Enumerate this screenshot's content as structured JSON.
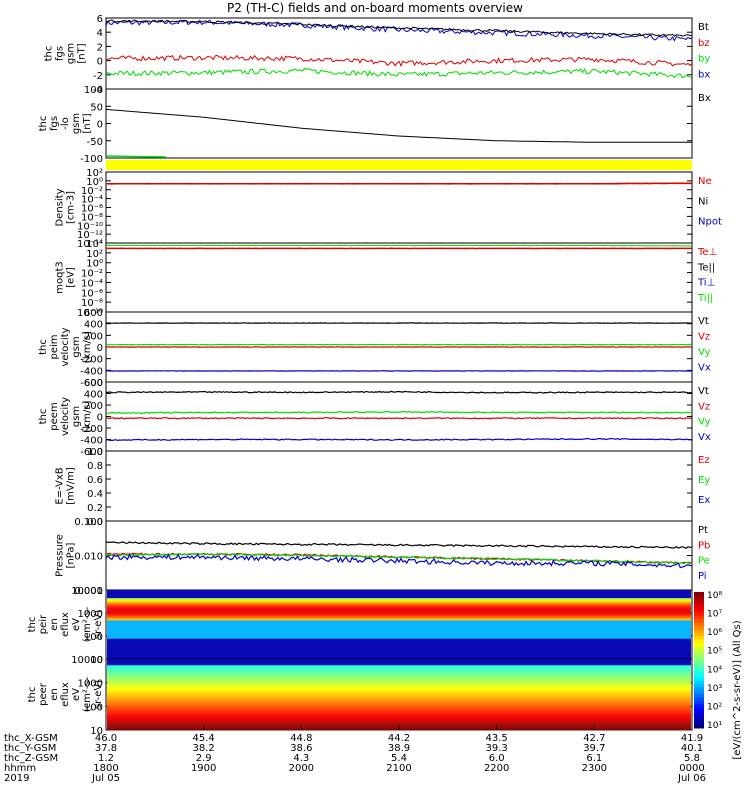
{
  "title": "P2 (TH-C) fields and on-board moments overview",
  "colors": {
    "black": "#000000",
    "red": "#e00000",
    "green": "#00dd00",
    "blue": "#0000d0",
    "yellow": "#ffff00"
  },
  "panels": [
    {
      "id": "fgs",
      "ylabel": [
        "thc",
        "fgs",
        "gsm",
        "[nT]"
      ],
      "ticks": [
        "6",
        "4",
        "2",
        "0",
        "-2",
        "-4"
      ],
      "legend": [
        {
          "t": "Bt",
          "c": "black"
        },
        {
          "t": "bz",
          "c": "red"
        },
        {
          "t": "by",
          "c": "green"
        },
        {
          "t": "bx",
          "c": "blue"
        }
      ]
    },
    {
      "id": "fgs_lo",
      "ylabel": [
        "thc",
        "fgs",
        "-lo",
        "gsm",
        "[nT]"
      ],
      "ticks": [
        "100",
        "50",
        "0",
        "-50",
        "-100"
      ],
      "legend": [
        {
          "t": "Bx",
          "c": "black"
        }
      ]
    },
    {
      "id": "density",
      "ylabel": [
        "Density",
        "[cm-3]"
      ],
      "ticks": [
        "10²",
        "10⁰",
        "10⁻²",
        "10⁻⁴",
        "10⁻⁶",
        "10⁻⁸",
        "10⁻¹⁰",
        "10⁻¹²",
        "10⁻¹⁴"
      ],
      "legend": [
        {
          "t": "Ne",
          "c": "red"
        },
        {
          "t": "Ni",
          "c": "black"
        },
        {
          "t": "Npot",
          "c": "blue"
        }
      ]
    },
    {
      "id": "temp",
      "ylabel": [
        "moqt3",
        "[eV]"
      ],
      "ticks": [
        "10⁴",
        "10²",
        "10⁰",
        "10⁻²",
        "10⁻⁴",
        "10⁻⁶",
        "10⁻⁸",
        "10⁻¹⁰"
      ],
      "legend": [
        {
          "t": "Te⊥",
          "c": "red"
        },
        {
          "t": "Te||",
          "c": "black"
        },
        {
          "t": "Ti⊥",
          "c": "blue"
        },
        {
          "t": "Ti||",
          "c": "green"
        }
      ]
    },
    {
      "id": "peim",
      "ylabel": [
        "thc",
        "peim",
        "velocity",
        "gsm",
        "[km/s]"
      ],
      "ticks": [
        "600",
        "400",
        "200",
        "0",
        "-200",
        "-400",
        "-600"
      ],
      "legend": [
        {
          "t": "Vt",
          "c": "black"
        },
        {
          "t": "Vz",
          "c": "red"
        },
        {
          "t": "Vy",
          "c": "green"
        },
        {
          "t": "Vx",
          "c": "blue"
        }
      ]
    },
    {
      "id": "peem",
      "ylabel": [
        "thc",
        "peem",
        "velocity",
        "gsm",
        "[km/s]"
      ],
      "ticks": [
        "600",
        "400",
        "200",
        "0",
        "-200",
        "-400",
        "-600"
      ],
      "legend": [
        {
          "t": "Vt",
          "c": "black"
        },
        {
          "t": "Vz",
          "c": "red"
        },
        {
          "t": "Vy",
          "c": "green"
        },
        {
          "t": "Vx",
          "c": "blue"
        }
      ]
    },
    {
      "id": "efield",
      "ylabel": [
        "E=-VxB",
        "[mV/m]"
      ],
      "ticks": [
        "1.0",
        "0.8",
        "0.6",
        "0.4",
        "0.2",
        "0.0"
      ],
      "legend": [
        {
          "t": "Ez",
          "c": "red"
        },
        {
          "t": "Ey",
          "c": "green"
        },
        {
          "t": "Ex",
          "c": "blue"
        }
      ]
    },
    {
      "id": "pressure",
      "ylabel": [
        "Pressure",
        "[nPa]"
      ],
      "ticks": [
        "0.100",
        "0.010",
        "0.001"
      ],
      "legend": [
        {
          "t": "Pt",
          "c": "black"
        },
        {
          "t": "Pb",
          "c": "red"
        },
        {
          "t": "Pe",
          "c": "green"
        },
        {
          "t": "Pi",
          "c": "blue"
        }
      ]
    },
    {
      "id": "peir",
      "ylabel": [
        "thc",
        "peir",
        "en",
        "eflux",
        "eV",
        "(cm²-s-",
        "sr-eV)"
      ],
      "ticks": [
        "10000",
        "1000",
        "100",
        "10"
      ]
    },
    {
      "id": "peer",
      "ylabel": [
        "thc",
        "peer",
        "en",
        "eflux",
        "eV",
        "(cm²-s-",
        "sr-eV)"
      ],
      "ticks": [
        "10000",
        "1000",
        "100",
        "10"
      ]
    }
  ],
  "colorbar": {
    "ticks": [
      "10⁸",
      "10⁷",
      "10⁶",
      "10⁵",
      "10⁴",
      "10³",
      "10²",
      "10¹"
    ],
    "label": "[eV/(cm^2-s-sr-eV)] (All Qs)"
  },
  "time_axis": {
    "rows": [
      {
        "label": "thc_X-GSM",
        "values": [
          "46.0",
          "45.4",
          "44.8",
          "44.2",
          "43.5",
          "42.7",
          "41.9"
        ]
      },
      {
        "label": "thc_Y-GSM",
        "values": [
          "37.8",
          "38.2",
          "38.6",
          "38.9",
          "39.3",
          "39.7",
          "40.1"
        ]
      },
      {
        "label": "thc_Z-GSM",
        "values": [
          "1.2",
          "2.9",
          "4.3",
          "5.4",
          "6.0",
          "6.1",
          "5.8"
        ]
      },
      {
        "label": "hhmm",
        "values": [
          "1800",
          "1900",
          "2000",
          "2100",
          "2200",
          "2300",
          "0000"
        ]
      },
      {
        "label": "2019",
        "values": [
          "Jul 05",
          "",
          "",
          "",
          "",
          "",
          "Jul 06"
        ]
      }
    ]
  },
  "chart_data": [
    {
      "type": "line",
      "title": "",
      "ylabel": "thc fgs gsm [nT]",
      "ylim": [
        -4,
        6
      ],
      "x": [
        "1800",
        "1900",
        "2000",
        "2100",
        "2200",
        "2300",
        "0000"
      ],
      "series": [
        {
          "name": "Bt",
          "values": [
            5.6,
            5.5,
            5.1,
            4.6,
            4.2,
            3.8,
            3.5
          ]
        },
        {
          "name": "bz",
          "values": [
            0.3,
            0.4,
            0.3,
            -0.4,
            0.0,
            0.2,
            -0.6
          ]
        },
        {
          "name": "by",
          "values": [
            -1.8,
            -1.7,
            -1.4,
            -2.0,
            -1.7,
            -1.5,
            -2.2
          ]
        },
        {
          "name": "bx",
          "values": [
            5.3,
            5.4,
            5.0,
            4.3,
            3.9,
            3.5,
            3.0
          ]
        }
      ]
    },
    {
      "type": "line",
      "title": "",
      "ylabel": "thc fgs-lo gsm [nT]",
      "ylim": [
        -120,
        100
      ],
      "x": [
        "1800",
        "1900",
        "2000",
        "2100",
        "2200",
        "2300",
        "0000"
      ],
      "series": [
        {
          "name": "Bx",
          "values": [
            35,
            10,
            -25,
            -50,
            -65,
            -70,
            -70
          ]
        }
      ]
    },
    {
      "type": "line",
      "title": "",
      "ylabel": "Density [cm-3]",
      "ylim": [
        -14,
        2
      ],
      "log": true,
      "x": [
        "1800",
        "1900",
        "2000",
        "2100",
        "2200",
        "2300",
        "0000"
      ],
      "series": [
        {
          "name": "Ne",
          "values": [
            0.2,
            0.2,
            0.2,
            0.2,
            0.2,
            0.2,
            0.3
          ]
        },
        {
          "name": "Ni",
          "values": [
            0.2,
            0.2,
            0.2,
            0.2,
            0.2,
            0.2,
            0.25
          ]
        }
      ]
    },
    {
      "type": "line",
      "title": "",
      "ylabel": "moqt3 [eV]",
      "ylim": [
        -10,
        4
      ],
      "log": true,
      "x": [
        "1800",
        "1900",
        "2000",
        "2100",
        "2200",
        "2300",
        "0000"
      ],
      "series": [
        {
          "name": "Te⊥",
          "values": [
            1000,
            1000,
            1000,
            1000,
            1000,
            1000,
            1000
          ]
        },
        {
          "name": "Ti||",
          "values": [
            3000,
            3000,
            3000,
            3000,
            3000,
            3000,
            3000
          ]
        }
      ]
    },
    {
      "type": "line",
      "title": "",
      "ylabel": "thc peim velocity gsm [km/s]",
      "ylim": [
        -600,
        600
      ],
      "x": [
        "1800",
        "1900",
        "2000",
        "2100",
        "2200",
        "2300",
        "0000"
      ],
      "series": [
        {
          "name": "Vt",
          "values": [
            410,
            410,
            410,
            410,
            410,
            410,
            410
          ]
        },
        {
          "name": "Vz",
          "values": [
            0,
            0,
            0,
            0,
            0,
            0,
            0
          ]
        },
        {
          "name": "Vy",
          "values": [
            40,
            40,
            40,
            40,
            40,
            40,
            40
          ]
        },
        {
          "name": "Vx",
          "values": [
            -410,
            -410,
            -410,
            -410,
            -410,
            -410,
            -410
          ]
        }
      ]
    },
    {
      "type": "line",
      "title": "",
      "ylabel": "thc peem velocity gsm [km/s]",
      "ylim": [
        -600,
        600
      ],
      "x": [
        "1800",
        "1900",
        "2000",
        "2100",
        "2200",
        "2300",
        "0000"
      ],
      "series": [
        {
          "name": "Vt",
          "values": [
            420,
            425,
            420,
            430,
            415,
            420,
            420
          ]
        },
        {
          "name": "Vz",
          "values": [
            -30,
            -30,
            -30,
            -30,
            -30,
            -30,
            -30
          ]
        },
        {
          "name": "Vy",
          "values": [
            60,
            70,
            70,
            80,
            70,
            70,
            70
          ]
        },
        {
          "name": "Vx",
          "values": [
            -410,
            -400,
            -400,
            -405,
            -400,
            -390,
            -400
          ]
        }
      ]
    },
    {
      "type": "line",
      "title": "",
      "ylabel": "E=-VxB [mV/m]",
      "ylim": [
        0,
        1
      ],
      "x": [],
      "series": []
    },
    {
      "type": "line",
      "title": "",
      "ylabel": "Pressure [nPa]",
      "ylim": [
        0.001,
        0.1
      ],
      "log": true,
      "x": [
        "1800",
        "1900",
        "2000",
        "2100",
        "2200",
        "2300",
        "0000"
      ],
      "series": [
        {
          "name": "Pt",
          "values": [
            0.024,
            0.022,
            0.021,
            0.02,
            0.019,
            0.018,
            0.017
          ]
        },
        {
          "name": "Pb",
          "values": [
            0.011,
            0.011,
            0.0105,
            0.009,
            0.008,
            0.007,
            0.006
          ]
        },
        {
          "name": "Pe",
          "values": [
            0.01,
            0.011,
            0.01,
            0.009,
            0.008,
            0.007,
            0.006
          ]
        },
        {
          "name": "Pi",
          "values": [
            0.009,
            0.009,
            0.008,
            0.007,
            0.006,
            0.006,
            0.005
          ]
        }
      ]
    },
    {
      "type": "heatmap",
      "title": "",
      "ylabel": "thc peir en eflux",
      "ylim": [
        5,
        20000
      ],
      "log": true
    },
    {
      "type": "heatmap",
      "title": "",
      "ylabel": "thc peer en eflux",
      "ylim": [
        5,
        20000
      ],
      "log": true
    }
  ]
}
